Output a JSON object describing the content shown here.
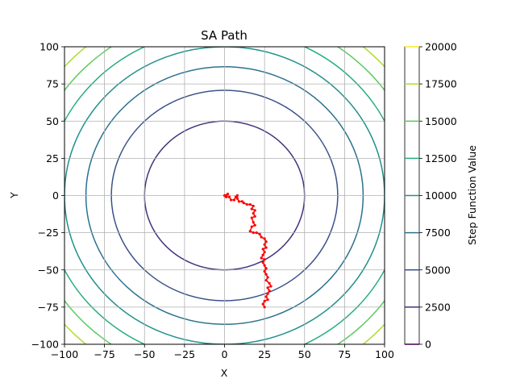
{
  "chart_data": {
    "type": "contour",
    "title": "SA Path",
    "xlabel": "X",
    "ylabel": "Y",
    "xlim": [
      -100,
      100
    ],
    "ylim": [
      -100,
      100
    ],
    "xticks": [
      -100,
      -75,
      -50,
      -25,
      0,
      25,
      50,
      75,
      100
    ],
    "yticks": [
      -100,
      -75,
      -50,
      -25,
      0,
      25,
      50,
      75,
      100
    ],
    "grid": true,
    "function_form": "x^2 + y^2 (stepped)",
    "contour_levels": [
      2500,
      5000,
      7500,
      10000,
      12500,
      15000,
      17500
    ],
    "contour_colors": [
      "#46327e",
      "#3b528b",
      "#2c728e",
      "#21918c",
      "#28ae80",
      "#5ec962",
      "#addc30"
    ],
    "colorbar": {
      "label": "Step Function Value",
      "ticks": [
        0,
        2500,
        5000,
        7500,
        10000,
        12500,
        15000,
        17500,
        20000
      ],
      "tick_labels": [
        "0",
        "2500",
        "5000",
        "7500",
        "10000",
        "12500",
        "15000",
        "17500",
        "20000"
      ],
      "level_colors": [
        "#440154",
        "#46327e",
        "#3b528b",
        "#2c728e",
        "#21918c",
        "#28ae80",
        "#5ec962",
        "#addc30",
        "#fde725"
      ]
    },
    "series": [
      {
        "color": "#ff0000",
        "points": [
          [
            0,
            0
          ],
          [
            2,
            1
          ],
          [
            1,
            -1
          ],
          [
            3,
            -1
          ],
          [
            4,
            -3
          ],
          [
            6,
            -3
          ],
          [
            7,
            -1
          ],
          [
            8,
            0
          ],
          [
            8,
            -2
          ],
          [
            9,
            -4
          ],
          [
            11,
            -4
          ],
          [
            12,
            -5
          ],
          [
            14,
            -6
          ],
          [
            16,
            -6
          ],
          [
            18,
            -7
          ],
          [
            17,
            -9
          ],
          [
            19,
            -10
          ],
          [
            18,
            -12
          ],
          [
            19,
            -14
          ],
          [
            17,
            -15
          ],
          [
            18,
            -18
          ],
          [
            19,
            -20
          ],
          [
            17,
            -21
          ],
          [
            16,
            -24
          ],
          [
            18,
            -25
          ],
          [
            20,
            -25
          ],
          [
            22,
            -26
          ],
          [
            23,
            -28
          ],
          [
            25,
            -29
          ],
          [
            26,
            -31
          ],
          [
            25,
            -33
          ],
          [
            26,
            -35
          ],
          [
            24,
            -36
          ],
          [
            25,
            -38
          ],
          [
            24,
            -40
          ],
          [
            23,
            -42
          ],
          [
            25,
            -43
          ],
          [
            24,
            -45
          ],
          [
            25,
            -47
          ],
          [
            26,
            -49
          ],
          [
            25,
            -51
          ],
          [
            26,
            -53
          ],
          [
            27,
            -55
          ],
          [
            26,
            -57
          ],
          [
            28,
            -59
          ],
          [
            29,
            -61
          ],
          [
            27,
            -62
          ],
          [
            28,
            -64
          ],
          [
            27,
            -66
          ],
          [
            26,
            -68
          ],
          [
            27,
            -70
          ],
          [
            25,
            -71
          ],
          [
            24,
            -73
          ],
          [
            25,
            -75
          ]
        ]
      }
    ]
  }
}
